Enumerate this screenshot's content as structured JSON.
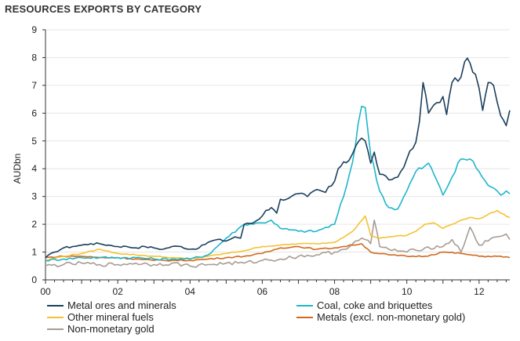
{
  "chart_data": {
    "type": "line",
    "title": "RESOURCES EXPORTS BY CATEGORY",
    "ylabel": "AUDbn",
    "xlabel": "",
    "ylim": [
      0,
      9
    ],
    "xlim": [
      2000,
      2012.85
    ],
    "yticks": [
      0,
      1,
      2,
      3,
      4,
      5,
      6,
      7,
      8,
      9
    ],
    "xticks": [
      {
        "value": 2000,
        "label": "00"
      },
      {
        "value": 2002,
        "label": "02"
      },
      {
        "value": 2004,
        "label": "04"
      },
      {
        "value": 2006,
        "label": "06"
      },
      {
        "value": 2008,
        "label": "08"
      },
      {
        "value": 2010,
        "label": "10"
      },
      {
        "value": 2012,
        "label": "12"
      }
    ],
    "series": [
      {
        "name": "Metal ores and minerals",
        "color": "#1b3f5c",
        "x": [
          2000.0,
          2000.25,
          2000.5,
          2000.75,
          2001.0,
          2001.25,
          2001.5,
          2001.75,
          2002.0,
          2002.25,
          2002.5,
          2002.75,
          2003.0,
          2003.25,
          2003.5,
          2003.75,
          2004.0,
          2004.25,
          2004.5,
          2004.75,
          2005.0,
          2005.25,
          2005.4,
          2005.5,
          2005.75,
          2006.0,
          2006.1,
          2006.25,
          2006.4,
          2006.5,
          2006.75,
          2007.0,
          2007.25,
          2007.5,
          2007.75,
          2008.0,
          2008.1,
          2008.25,
          2008.4,
          2008.6,
          2008.75,
          2008.85,
          2009.0,
          2009.1,
          2009.25,
          2009.5,
          2009.75,
          2010.0,
          2010.25,
          2010.35,
          2010.45,
          2010.6,
          2010.75,
          2011.0,
          2011.1,
          2011.25,
          2011.5,
          2011.6,
          2011.75,
          2011.9,
          2012.0,
          2012.1,
          2012.25,
          2012.4,
          2012.5,
          2012.6,
          2012.75,
          2012.85
        ],
        "values": [
          0.8,
          1.0,
          1.15,
          1.2,
          1.25,
          1.3,
          1.3,
          1.25,
          1.2,
          1.2,
          1.15,
          1.2,
          1.15,
          1.1,
          1.2,
          1.2,
          1.1,
          1.15,
          1.35,
          1.45,
          1.4,
          1.55,
          1.5,
          2.0,
          2.05,
          2.3,
          2.5,
          2.6,
          2.4,
          2.9,
          2.95,
          3.1,
          3.0,
          3.25,
          3.15,
          3.55,
          4.0,
          4.25,
          4.3,
          4.85,
          5.1,
          5.0,
          4.2,
          4.6,
          3.8,
          3.6,
          3.7,
          4.35,
          4.95,
          5.7,
          7.1,
          6.0,
          6.3,
          6.6,
          5.95,
          7.1,
          7.3,
          7.85,
          7.8,
          7.4,
          6.9,
          6.1,
          7.1,
          7.0,
          6.4,
          5.9,
          5.55,
          6.1
        ]
      },
      {
        "name": "Coal, coke and briquettes",
        "color": "#1fb6c9",
        "x": [
          2000.0,
          2000.5,
          2001.0,
          2001.5,
          2002.0,
          2002.5,
          2003.0,
          2003.5,
          2004.0,
          2004.5,
          2005.0,
          2005.5,
          2006.0,
          2006.25,
          2006.5,
          2007.0,
          2007.5,
          2008.0,
          2008.25,
          2008.5,
          2008.65,
          2008.75,
          2008.85,
          2009.0,
          2009.25,
          2009.5,
          2009.75,
          2010.0,
          2010.25,
          2010.5,
          2010.6,
          2010.75,
          2011.0,
          2011.25,
          2011.5,
          2011.75,
          2012.0,
          2012.25,
          2012.5,
          2012.6,
          2012.75,
          2012.85
        ],
        "values": [
          0.7,
          0.75,
          0.8,
          0.8,
          0.8,
          0.8,
          0.75,
          0.75,
          0.75,
          0.9,
          1.5,
          2.0,
          2.05,
          2.15,
          1.85,
          1.75,
          1.75,
          2.0,
          3.0,
          4.25,
          5.6,
          6.25,
          6.2,
          4.5,
          3.2,
          2.6,
          2.55,
          3.2,
          3.9,
          4.1,
          4.2,
          3.8,
          3.05,
          3.7,
          4.35,
          4.35,
          3.9,
          3.4,
          3.2,
          3.05,
          3.2,
          3.1
        ]
      },
      {
        "name": "Other mineral fuels",
        "color": "#f5c232",
        "x": [
          2000.0,
          2000.5,
          2001.0,
          2001.5,
          2002.0,
          2002.5,
          2003.0,
          2003.5,
          2004.0,
          2004.5,
          2005.0,
          2005.5,
          2006.0,
          2006.5,
          2007.0,
          2007.5,
          2008.0,
          2008.5,
          2008.85,
          2009.0,
          2009.25,
          2009.5,
          2010.0,
          2010.25,
          2010.5,
          2010.75,
          2011.0,
          2011.5,
          2011.75,
          2012.0,
          2012.5,
          2012.6,
          2012.85
        ],
        "values": [
          0.7,
          0.85,
          0.95,
          1.1,
          0.95,
          0.9,
          0.85,
          0.8,
          0.75,
          0.85,
          0.95,
          1.05,
          1.2,
          1.25,
          1.3,
          1.3,
          1.35,
          1.75,
          2.3,
          1.6,
          1.5,
          1.55,
          1.6,
          1.75,
          2.0,
          2.05,
          1.85,
          2.15,
          2.25,
          2.2,
          2.5,
          2.4,
          2.25
        ]
      },
      {
        "name": "Metals (excl. non-monetary gold)",
        "color": "#d2691e",
        "x": [
          2000.0,
          2000.5,
          2001.0,
          2001.5,
          2002.0,
          2002.5,
          2003.0,
          2003.5,
          2004.0,
          2004.5,
          2005.0,
          2005.5,
          2006.0,
          2006.5,
          2007.0,
          2007.5,
          2008.0,
          2008.5,
          2008.75,
          2009.0,
          2009.5,
          2010.0,
          2010.5,
          2011.0,
          2011.5,
          2011.75,
          2012.0,
          2012.5,
          2012.85
        ],
        "values": [
          0.8,
          0.85,
          0.85,
          0.8,
          0.8,
          0.75,
          0.7,
          0.7,
          0.7,
          0.75,
          0.8,
          0.85,
          0.95,
          1.15,
          1.2,
          1.1,
          1.15,
          1.25,
          1.3,
          1.0,
          0.9,
          0.85,
          0.85,
          1.0,
          0.95,
          0.9,
          0.85,
          0.85,
          0.8
        ]
      },
      {
        "name": "Non-monetary gold",
        "color": "#a89c94",
        "x": [
          2000.0,
          2000.5,
          2001.0,
          2001.5,
          2002.0,
          2002.5,
          2003.0,
          2003.5,
          2004.0,
          2004.5,
          2005.0,
          2005.5,
          2006.0,
          2006.5,
          2007.0,
          2007.5,
          2008.0,
          2008.25,
          2008.5,
          2008.75,
          2008.85,
          2009.0,
          2009.1,
          2009.25,
          2009.5,
          2010.0,
          2010.5,
          2011.0,
          2011.25,
          2011.5,
          2011.75,
          2012.0,
          2012.25,
          2012.5,
          2012.75,
          2012.85
        ],
        "values": [
          0.5,
          0.55,
          0.6,
          0.55,
          0.55,
          0.6,
          0.55,
          0.6,
          0.5,
          0.55,
          0.6,
          0.6,
          0.7,
          0.75,
          0.85,
          0.9,
          1.0,
          1.1,
          1.3,
          1.5,
          1.45,
          1.3,
          2.15,
          1.2,
          1.1,
          1.0,
          1.15,
          1.2,
          1.45,
          1.0,
          1.9,
          1.25,
          1.4,
          1.55,
          1.65,
          1.45
        ]
      }
    ],
    "legend": {
      "placement": "bottom",
      "columns": 2
    }
  }
}
